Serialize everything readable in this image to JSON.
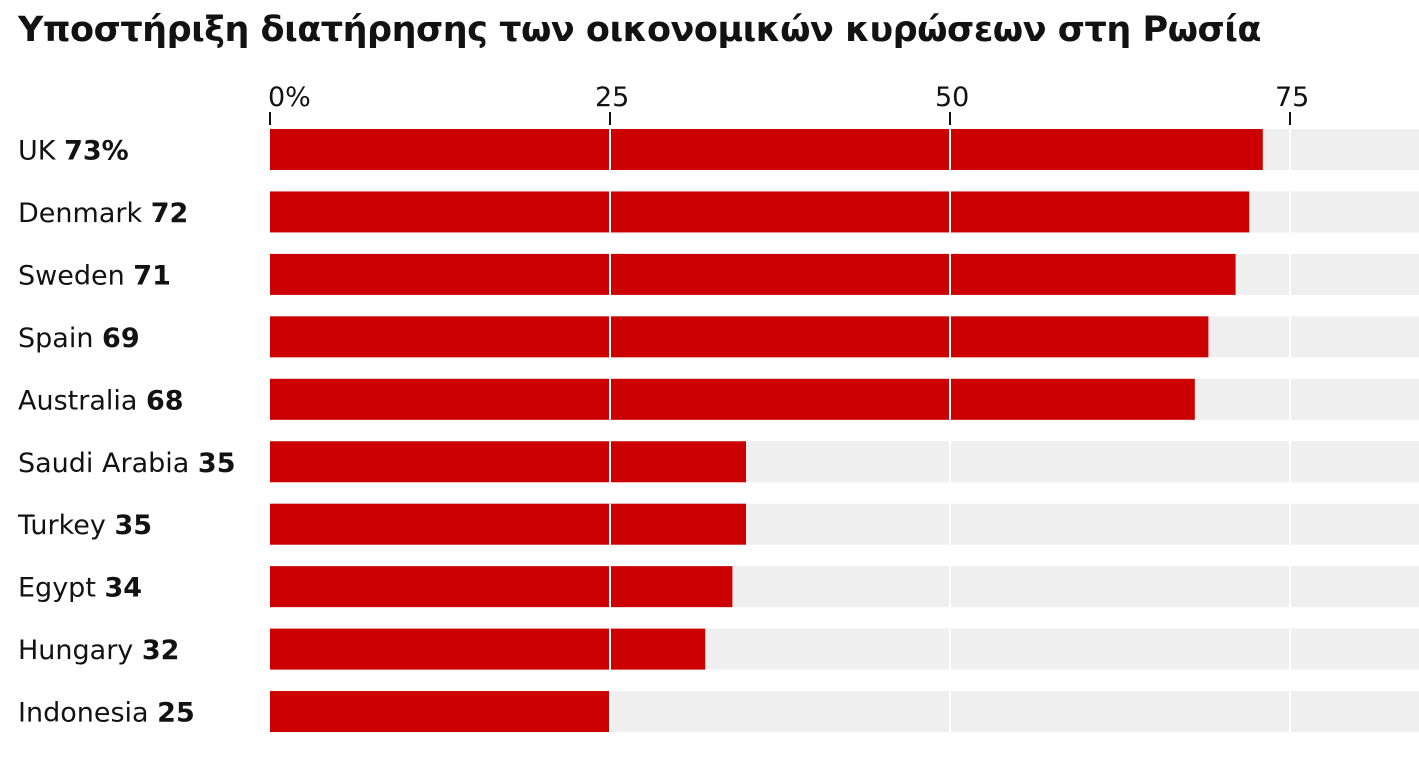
{
  "chart_data": {
    "type": "bar",
    "orientation": "horizontal",
    "title": "Υποστήριξη διατήρησης των οικονομικών κυρώσεων στη Ρωσία",
    "xlabel": "",
    "ylabel": "",
    "xlim": [
      0,
      85
    ],
    "ticks": [
      0,
      25,
      50,
      75
    ],
    "tick_labels": [
      "0%",
      "25",
      "50",
      "75"
    ],
    "categories": [
      "UK",
      "Denmark",
      "Sweden",
      "Spain",
      "Australia",
      "Saudi Arabia",
      "Turkey",
      "Egypt",
      "Hungary",
      "Indonesia"
    ],
    "values": [
      73,
      72,
      71,
      69,
      68,
      35,
      35,
      34,
      32,
      25
    ],
    "value_labels": [
      "73%",
      "72",
      "71",
      "69",
      "68",
      "35",
      "35",
      "34",
      "32",
      "25"
    ],
    "grid": true,
    "colors": {
      "bar": "#cc0000",
      "track": "#efefef",
      "grid": "#ffffff"
    }
  }
}
